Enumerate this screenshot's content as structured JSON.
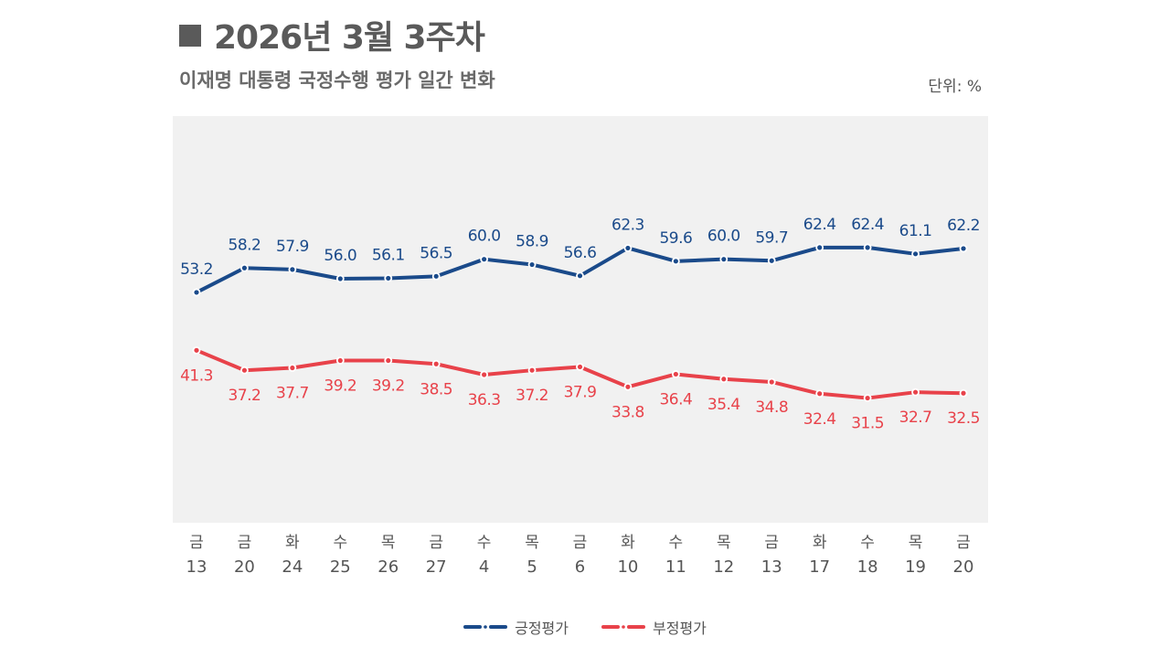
{
  "header": {
    "title": "2026년 3월 3주차",
    "subtitle": "이재명 대통령 국정수행 평가 일간 변화",
    "unit": "단위: %"
  },
  "chart_data": {
    "type": "line",
    "categories": [
      [
        "금",
        "13"
      ],
      [
        "금",
        "20"
      ],
      [
        "화",
        "24"
      ],
      [
        "수",
        "25"
      ],
      [
        "목",
        "26"
      ],
      [
        "금",
        "27"
      ],
      [
        "수",
        "4"
      ],
      [
        "목",
        "5"
      ],
      [
        "금",
        "6"
      ],
      [
        "화",
        "10"
      ],
      [
        "수",
        "11"
      ],
      [
        "목",
        "12"
      ],
      [
        "금",
        "13"
      ],
      [
        "화",
        "17"
      ],
      [
        "수",
        "18"
      ],
      [
        "목",
        "19"
      ],
      [
        "금",
        "20"
      ]
    ],
    "series": [
      {
        "name": "긍정평가",
        "color": "#1a4a8a",
        "values": [
          53.2,
          58.2,
          57.9,
          56.0,
          56.1,
          56.5,
          60.0,
          58.9,
          56.6,
          62.3,
          59.6,
          60.0,
          59.7,
          62.4,
          62.4,
          61.1,
          62.2
        ]
      },
      {
        "name": "부정평가",
        "color": "#e8424a",
        "values": [
          41.3,
          37.2,
          37.7,
          39.2,
          39.2,
          38.5,
          36.3,
          37.2,
          37.9,
          33.8,
          36.4,
          35.4,
          34.8,
          32.4,
          31.5,
          32.7,
          32.5
        ]
      }
    ],
    "ylim": [
      5.9,
      89.4
    ],
    "grid": false,
    "legend": "bottom",
    "background": "#f1f1f1"
  }
}
